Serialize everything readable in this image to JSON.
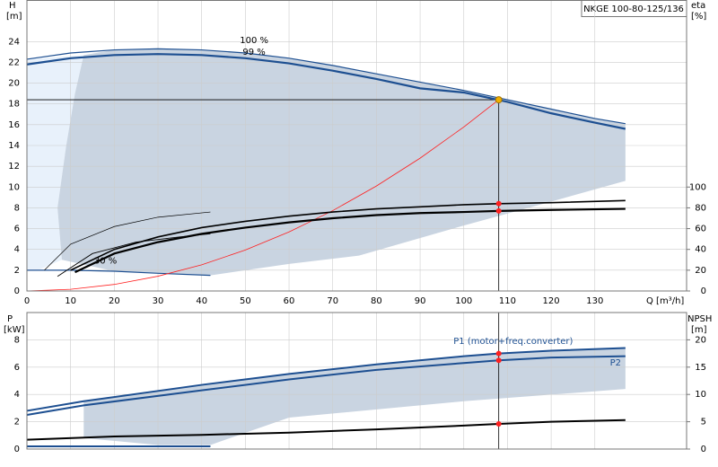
{
  "chart_data": [
    {
      "type": "line",
      "title": "NKGE 100-80-125/136",
      "y_label": "H",
      "y_unit": "[m]",
      "y2_label": "eta",
      "y2_unit": "[%]",
      "x_label": "Q [m³/h]",
      "xlim": [
        0,
        151
      ],
      "xticks": [
        0,
        10,
        20,
        30,
        40,
        50,
        60,
        70,
        80,
        90,
        100,
        110,
        120,
        130
      ],
      "ylim": [
        0,
        28
      ],
      "yticks": [
        0,
        2,
        4,
        6,
        8,
        10,
        12,
        14,
        16,
        18,
        20,
        22,
        24
      ],
      "y2lim": [
        0,
        280
      ],
      "y2ticks": [
        0,
        20,
        40,
        60,
        80,
        100
      ],
      "grid": true,
      "light_range": {
        "color": "#e8f1fb",
        "x": [
          0,
          13,
          11,
          9,
          7,
          8,
          3,
          0
        ],
        "values": [
          22.3,
          22.7,
          19,
          14,
          8,
          3,
          2.1,
          2.1
        ]
      },
      "operating_range": {
        "color": "#c9d4e1",
        "x": [
          13,
          20,
          30,
          40,
          50,
          60,
          70,
          80,
          90,
          100,
          110,
          120,
          130,
          137,
          137,
          120,
          100,
          76,
          60,
          42,
          20,
          8,
          7,
          9,
          11
        ],
        "values": [
          22.7,
          23.2,
          23.3,
          23.2,
          22.9,
          22.4,
          21.7,
          20.9,
          20.1,
          19.3,
          18.4,
          17.5,
          16.6,
          16.1,
          10.6,
          8.6,
          6.3,
          3.4,
          2.6,
          1.5,
          1.9,
          3,
          8,
          14,
          19
        ]
      },
      "series": [
        {
          "name": "100 %",
          "color": "#1d4f91",
          "width": 1.2,
          "x": [
            0,
            10,
            20,
            30,
            40,
            50,
            60,
            70,
            80,
            90,
            100,
            110,
            120,
            130,
            137
          ],
          "values": [
            22.3,
            22.9,
            23.2,
            23.3,
            23.2,
            22.9,
            22.4,
            21.7,
            20.9,
            20.1,
            19.3,
            18.4,
            17.5,
            16.6,
            16.1
          ]
        },
        {
          "name": "99 %",
          "color": "#1d4f91",
          "width": 2.2,
          "x": [
            0,
            10,
            20,
            30,
            40,
            50,
            60,
            70,
            80,
            90,
            100,
            110,
            120,
            130,
            137
          ],
          "values": [
            21.8,
            22.4,
            22.7,
            22.8,
            22.7,
            22.4,
            21.9,
            21.2,
            20.4,
            19.5,
            19.1,
            18.2,
            17.1,
            16.2,
            15.6
          ]
        },
        {
          "name": "30 %",
          "color": "#1d4f91",
          "width": 1.2,
          "x": [
            0,
            10,
            20,
            30,
            42
          ],
          "values": [
            2.0,
            2.0,
            1.9,
            1.7,
            1.5
          ]
        },
        {
          "color": "#ff2020",
          "width": 0.8,
          "x": [
            0,
            10,
            20,
            30,
            40,
            50,
            60,
            70,
            80,
            90,
            100,
            108
          ],
          "values": [
            0,
            0.16,
            0.63,
            1.42,
            2.52,
            3.94,
            5.68,
            7.73,
            10.1,
            12.78,
            15.78,
            18.4
          ]
        },
        {
          "color": "#000000",
          "width": 1.6,
          "axis": "y2",
          "x": [
            10,
            20,
            30,
            40,
            50,
            60,
            70,
            80,
            90,
            100,
            108,
            120,
            137
          ],
          "values": [
            20,
            40,
            52,
            61,
            67,
            72,
            76,
            79,
            81,
            83,
            84,
            85,
            87
          ]
        },
        {
          "color": "#000000",
          "width": 2.2,
          "axis": "y2",
          "x": [
            11,
            20,
            30,
            40,
            50,
            60,
            70,
            80,
            90,
            100,
            108,
            120,
            137
          ],
          "values": [
            18,
            36,
            47,
            55,
            61,
            66,
            70,
            73,
            75,
            76,
            77,
            78,
            79
          ]
        },
        {
          "color": "#000000",
          "width": 0.7,
          "axis": "y2",
          "x": [
            4,
            10,
            20,
            30,
            42
          ],
          "values": [
            20,
            45,
            62,
            71,
            76
          ]
        },
        {
          "color": "#000000",
          "width": 0.9,
          "axis": "y2",
          "x": [
            7,
            15,
            25,
            35,
            42
          ],
          "values": [
            14,
            36,
            47,
            52,
            55
          ]
        }
      ],
      "duty_point": {
        "x": 108,
        "value": 18.4,
        "color": "#f0b000"
      },
      "points": [
        {
          "x": 108,
          "value": 84,
          "axis": "y2"
        },
        {
          "x": 108,
          "value": 77,
          "axis": "y2"
        }
      ]
    },
    {
      "type": "line",
      "y_label": "P",
      "y_unit": "[kW]",
      "y2_label": "NPSH",
      "y2_unit": "[m]",
      "xlim": [
        0,
        151
      ],
      "ylim": [
        0,
        10
      ],
      "yticks": [
        0,
        2,
        4,
        6,
        8
      ],
      "y2lim": [
        0,
        25
      ],
      "y2ticks": [
        0,
        5,
        10,
        15,
        20
      ],
      "grid": true,
      "operating_range": {
        "color": "#c9d4e1",
        "x": [
          13,
          40,
          60,
          80,
          100,
          108,
          120,
          137,
          137,
          100,
          60,
          42,
          30,
          13
        ],
        "values": [
          3.5,
          4.7,
          5.5,
          6.2,
          6.8,
          7.0,
          7.2,
          7.4,
          4.4,
          3.5,
          2.3,
          0.3,
          0.3,
          0.8
        ]
      },
      "series": [
        {
          "name": "P1 (motor+freq.converter)",
          "color": "#1d4f91",
          "width": 2,
          "x": [
            0,
            13,
            40,
            60,
            80,
            100,
            108,
            120,
            137
          ],
          "values": [
            2.8,
            3.5,
            4.7,
            5.5,
            6.2,
            6.8,
            7.0,
            7.2,
            7.4
          ]
        },
        {
          "name": "P2",
          "color": "#1d4f91",
          "width": 2,
          "x": [
            0,
            13,
            40,
            60,
            80,
            100,
            108,
            120,
            137
          ],
          "values": [
            2.5,
            3.2,
            4.3,
            5.1,
            5.8,
            6.3,
            6.5,
            6.7,
            6.8
          ]
        },
        {
          "color": "#1d4f91",
          "width": 2,
          "x": [
            0,
            42
          ],
          "values": [
            0.2,
            0.2
          ]
        },
        {
          "color": "#000000",
          "width": 2,
          "axis": "y2",
          "x": [
            0,
            20,
            40,
            60,
            80,
            100,
            108,
            120,
            137
          ],
          "values": [
            1.7,
            2.3,
            2.6,
            3.0,
            3.6,
            4.3,
            4.6,
            5.0,
            5.3
          ]
        }
      ],
      "duty_point": {
        "x": 108,
        "value": 0
      },
      "points": [
        {
          "x": 108,
          "value": 7.0
        },
        {
          "x": 108,
          "value": 6.5
        },
        {
          "x": 108,
          "value": 4.6,
          "axis": "y2"
        }
      ]
    }
  ]
}
